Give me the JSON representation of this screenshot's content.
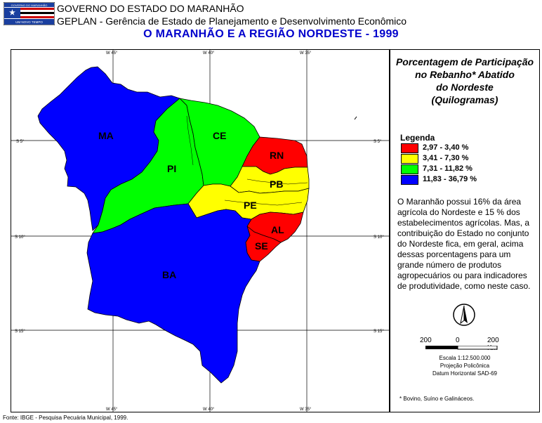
{
  "header": {
    "line1": "GOVERNO DO ESTADO DO MARANHÃO",
    "line2": "GEPLAN - Gerência de Estado de Planejamento e Desenvolvimento Econômico",
    "title": "O MARANHÃO E A REGIÃO NORDESTE - 1999"
  },
  "logo": {
    "top_text": "GOVERNO DO MARANHÃO",
    "bottom_text": "UM NOVO TEMPO"
  },
  "colors": {
    "red": "#ff0000",
    "yellow": "#ffff00",
    "green": "#00ff00",
    "blue": "#0000ff",
    "title_blue": "#0000cc"
  },
  "panel": {
    "title_lines": [
      "Porcentagem de Participação",
      "no Rebanho* Abatido",
      "do Nordeste",
      "(Quilogramas)"
    ],
    "legend_title": "Legenda",
    "legend": [
      {
        "range": "2,97 - 3,40 %",
        "color": "#ff0000"
      },
      {
        "range": "3,41 - 7,30 %",
        "color": "#ffff00"
      },
      {
        "range": "7,31 - 11,82 %",
        "color": "#00ff00"
      },
      {
        "range": "11,83 - 36,79 %",
        "color": "#0000ff"
      }
    ],
    "description": "O Maranhão possui 16% da área agrícola do Nordeste e 15 % dos estabelecimentos agrícolas. Mas, a contribuição do Estado no conjunto do Nordeste fica, em geral, acima dessas porcentagens para um grande número de produtos agropecuários ou para indicadores de produtividade, como neste caso.",
    "compass_letter": "N",
    "scale": {
      "label_left": "200",
      "label_mid": "0",
      "label_right": "200 Km",
      "line1": "Escala 1:12.500.000",
      "line2": "Projeção Policônica",
      "line3": "Datum Horizontal SAD-69"
    },
    "footnote": "* Bovino, Suíno e Galináceos."
  },
  "source": "Fonte: IBGE - Pesquisa Pecuária Municipal, 1999.",
  "map": {
    "states": [
      {
        "code": "MA",
        "color": "#0000ff"
      },
      {
        "code": "PI",
        "color": "#00ff00"
      },
      {
        "code": "CE",
        "color": "#00ff00"
      },
      {
        "code": "RN",
        "color": "#ff0000"
      },
      {
        "code": "PB",
        "color": "#ffff00"
      },
      {
        "code": "PE",
        "color": "#ffff00"
      },
      {
        "code": "AL",
        "color": "#ff0000"
      },
      {
        "code": "SE",
        "color": "#ff0000"
      },
      {
        "code": "BA",
        "color": "#0000ff"
      }
    ],
    "coords": {
      "top": [
        "W 45°",
        "W 40°",
        "W 35°"
      ],
      "bottom": [
        "W 45°",
        "W 40°",
        "W 35°"
      ],
      "left": [
        "S 5°",
        "S 10°",
        "S 15°"
      ],
      "right": [
        "S 5°",
        "S 10°",
        "S 15°"
      ]
    }
  }
}
